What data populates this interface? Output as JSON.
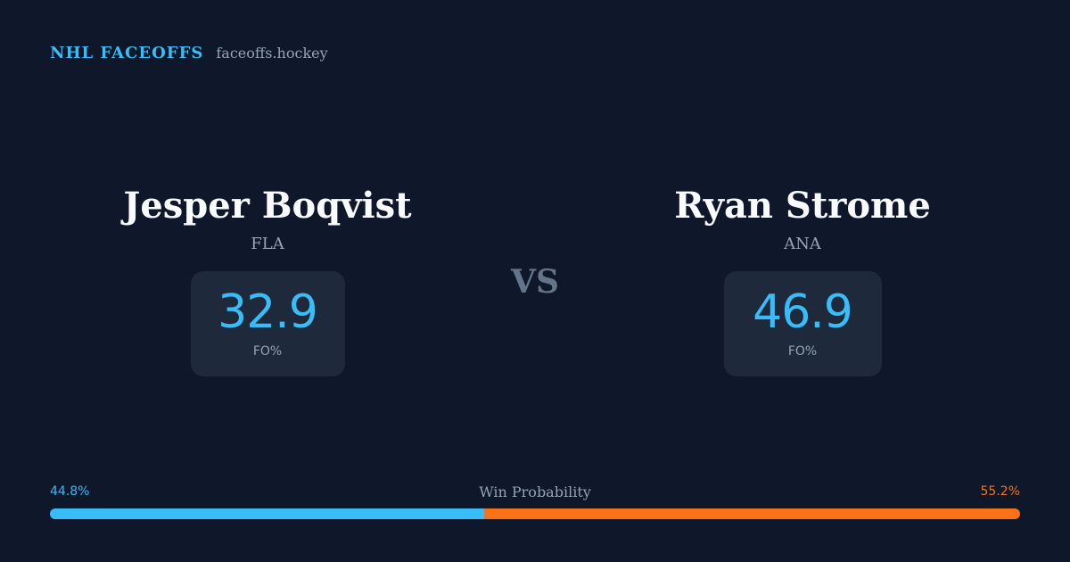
{
  "brand": {
    "name": "NHL FACEOFFS",
    "site": "faceoffs.hockey"
  },
  "matchup": {
    "vs_label": "VS",
    "left_player": {
      "name": "Jesper Boqvist",
      "team": "FLA",
      "fo_pct": "32.9",
      "fo_label": "FO%"
    },
    "right_player": {
      "name": "Ryan Strome",
      "team": "ANA",
      "fo_pct": "46.9",
      "fo_label": "FO%"
    }
  },
  "win_probability": {
    "title": "Win Probability",
    "left_label": "44.8%",
    "right_label": "55.2%",
    "left_value": 44.8,
    "right_value": 55.2,
    "left_color": "#38bdf8",
    "right_color": "#f97316"
  },
  "colors": {
    "background": "#0f172a",
    "card": "#1e293b",
    "accent": "#38bdf8",
    "opponent_accent": "#f97316",
    "muted_text": "#94a3b8"
  }
}
